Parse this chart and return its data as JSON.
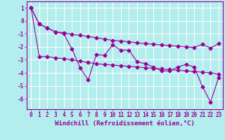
{
  "xlabel": "Windchill (Refroidissement éolien,°C)",
  "background_color": "#b3eded",
  "grid_color": "#d0f0f0",
  "line_color": "#990099",
  "spine_color": "#990099",
  "x_data": [
    0,
    1,
    2,
    3,
    4,
    5,
    6,
    7,
    8,
    9,
    10,
    11,
    12,
    13,
    14,
    15,
    16,
    17,
    18,
    19,
    20,
    21,
    22,
    23
  ],
  "y_main": [
    1.0,
    -0.25,
    -0.55,
    -0.85,
    -1.0,
    -2.15,
    -3.6,
    -4.55,
    -2.6,
    -2.65,
    -1.85,
    -2.25,
    -2.25,
    -3.15,
    -3.3,
    -3.55,
    -3.85,
    -3.85,
    -3.55,
    -3.35,
    -3.55,
    -5.05,
    -6.25,
    -4.35
  ],
  "y_upper": [
    1.0,
    -0.25,
    -0.55,
    -0.85,
    -0.9,
    -1.05,
    -1.1,
    -1.2,
    -1.3,
    -1.4,
    -1.5,
    -1.55,
    -1.6,
    -1.7,
    -1.75,
    -1.8,
    -1.85,
    -1.9,
    -1.95,
    -2.0,
    -2.05,
    -1.8,
    -2.1,
    -1.75
  ],
  "y_lower": [
    1.0,
    -2.75,
    -2.75,
    -2.85,
    -2.9,
    -3.0,
    -3.1,
    -3.2,
    -3.3,
    -3.35,
    -3.4,
    -3.45,
    -3.5,
    -3.55,
    -3.6,
    -3.65,
    -3.7,
    -3.75,
    -3.8,
    -3.85,
    -3.9,
    -3.95,
    -4.0,
    -4.1
  ],
  "xlim": [
    -0.5,
    23.5
  ],
  "ylim": [
    -6.8,
    1.5
  ],
  "yticks": [
    1,
    0,
    -1,
    -2,
    -3,
    -4,
    -5,
    -6
  ],
  "xticks": [
    0,
    1,
    2,
    3,
    4,
    5,
    6,
    7,
    8,
    9,
    10,
    11,
    12,
    13,
    14,
    15,
    16,
    17,
    18,
    19,
    20,
    21,
    22,
    23
  ],
  "tick_fontsize": 5.5,
  "xlabel_fontsize": 6.5
}
